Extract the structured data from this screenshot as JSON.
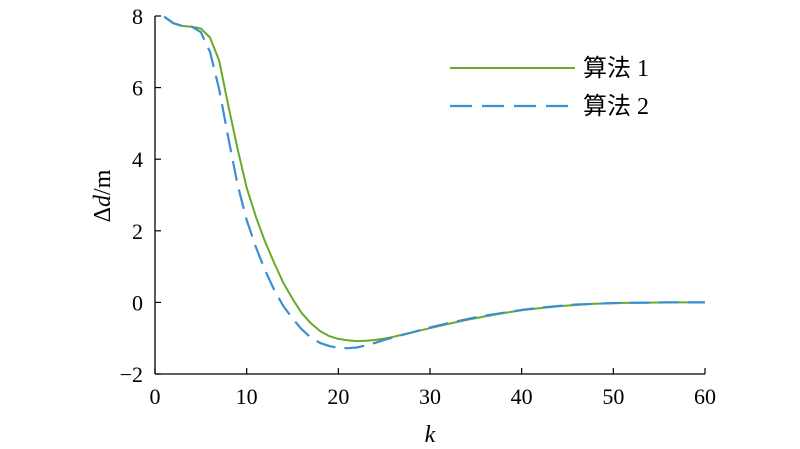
{
  "chart_data": {
    "type": "line",
    "xlabel": "k",
    "ylabel_prefix": "Δ",
    "ylabel_var": "d",
    "ylabel_suffix": "/m",
    "xlim": [
      0,
      60
    ],
    "ylim": [
      -2,
      8
    ],
    "xticks": [
      "0",
      "10",
      "20",
      "30",
      "40",
      "50",
      "60"
    ],
    "yticks": [
      "−2",
      "0",
      "2",
      "4",
      "6",
      "8"
    ],
    "grid": false,
    "legend_position": "top-right",
    "series": [
      {
        "name": "算法 1",
        "color": "#6aaa2a",
        "style": "solid",
        "x": [
          1,
          2,
          3,
          4,
          5,
          6,
          7,
          8,
          9,
          10,
          11,
          12,
          13,
          14,
          15,
          16,
          17,
          18,
          19,
          20,
          21,
          22,
          23,
          24,
          25,
          26,
          27,
          28,
          29,
          30,
          32,
          34,
          36,
          38,
          40,
          42,
          44,
          46,
          48,
          50,
          52,
          54,
          56,
          58,
          60
        ],
        "y": [
          7.98,
          7.8,
          7.72,
          7.7,
          7.65,
          7.4,
          6.75,
          5.5,
          4.3,
          3.2,
          2.4,
          1.7,
          1.1,
          0.55,
          0.1,
          -0.3,
          -0.58,
          -0.8,
          -0.94,
          -1.02,
          -1.06,
          -1.08,
          -1.07,
          -1.05,
          -1.01,
          -0.96,
          -0.9,
          -0.84,
          -0.78,
          -0.72,
          -0.6,
          -0.49,
          -0.39,
          -0.3,
          -0.22,
          -0.16,
          -0.11,
          -0.07,
          -0.04,
          -0.02,
          -0.01,
          -0.005,
          0.0,
          0.0,
          0.0
        ]
      },
      {
        "name": "算法 2",
        "color": "#3a8fd0",
        "style": "dashed",
        "x": [
          1,
          2,
          3,
          4,
          5,
          6,
          7,
          8,
          9,
          10,
          11,
          12,
          13,
          14,
          15,
          16,
          17,
          18,
          19,
          20,
          21,
          22,
          23,
          24,
          25,
          26,
          27,
          28,
          29,
          30,
          32,
          34,
          36,
          38,
          40,
          42,
          44,
          46,
          48,
          50,
          52,
          54,
          56,
          58,
          60
        ],
        "y": [
          7.98,
          7.8,
          7.72,
          7.7,
          7.55,
          7.0,
          5.95,
          4.6,
          3.3,
          2.3,
          1.55,
          0.9,
          0.35,
          -0.1,
          -0.45,
          -0.75,
          -0.98,
          -1.13,
          -1.22,
          -1.27,
          -1.28,
          -1.26,
          -1.2,
          -1.13,
          -1.05,
          -0.98,
          -0.91,
          -0.84,
          -0.77,
          -0.7,
          -0.58,
          -0.47,
          -0.37,
          -0.29,
          -0.21,
          -0.15,
          -0.1,
          -0.06,
          -0.04,
          -0.02,
          -0.01,
          -0.005,
          0.0,
          0.0,
          0.0
        ]
      }
    ]
  }
}
